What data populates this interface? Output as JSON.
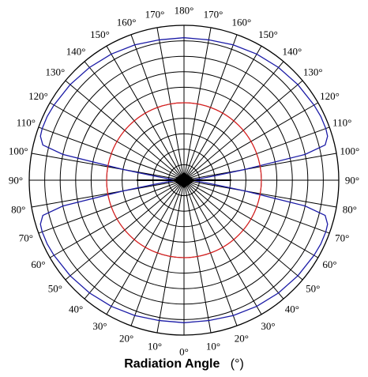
{
  "chart_data": {
    "type": "polar-line",
    "xlabel": "Radiation Angle",
    "xlabel_unit": "(°)",
    "angle_ticks": [
      {
        "angle": 0,
        "left": "0°",
        "right": "0°"
      },
      {
        "angle": 10,
        "left": "10°",
        "right": "10°"
      },
      {
        "angle": 20,
        "left": "20°",
        "right": "20°"
      },
      {
        "angle": 30,
        "left": "30°",
        "right": "30°"
      },
      {
        "angle": 40,
        "left": "40°",
        "right": "40°"
      },
      {
        "angle": 50,
        "left": "50°",
        "right": "50°"
      },
      {
        "angle": 60,
        "left": "60°",
        "right": "60°"
      },
      {
        "angle": 70,
        "left": "70°",
        "right": "70°"
      },
      {
        "angle": 80,
        "left": "80°",
        "right": "80°"
      },
      {
        "angle": 90,
        "left": "90°",
        "right": "90°"
      },
      {
        "angle": 100,
        "left": "100°",
        "right": "100°"
      },
      {
        "angle": 110,
        "left": "110°",
        "right": "110°"
      },
      {
        "angle": 120,
        "left": "120°",
        "right": "120°"
      },
      {
        "angle": 130,
        "left": "130°",
        "right": "130°"
      },
      {
        "angle": 140,
        "left": "140°",
        "right": "140°"
      },
      {
        "angle": 150,
        "left": "150°",
        "right": "150°"
      },
      {
        "angle": 160,
        "left": "160°",
        "right": "160°"
      },
      {
        "angle": 170,
        "left": "170°",
        "right": "170°"
      },
      {
        "angle": 180,
        "left": "180°",
        "right": "180°"
      }
    ],
    "radial_max": 1.0,
    "radial_grid": [
      0.1,
      0.2,
      0.3,
      0.4,
      0.5,
      0.6,
      0.7,
      0.8,
      0.9,
      1.0
    ],
    "angular_grid_step": 10,
    "grid": true,
    "series": [
      {
        "color": "#1a1aa6",
        "points": [
          [
            0,
            0.92
          ],
          [
            10,
            0.92
          ],
          [
            20,
            0.93
          ],
          [
            30,
            0.94
          ],
          [
            40,
            0.95
          ],
          [
            50,
            0.96
          ],
          [
            60,
            0.97
          ],
          [
            65,
            0.975
          ],
          [
            70,
            0.975
          ],
          [
            73,
            0.97
          ],
          [
            76,
            0.94
          ],
          [
            78,
            0.8
          ],
          [
            80,
            0.4
          ],
          [
            82,
            0.2
          ],
          [
            85,
            0.1
          ],
          [
            88,
            0.06
          ],
          [
            90,
            0.05
          ],
          [
            92,
            0.06
          ],
          [
            95,
            0.1
          ],
          [
            98,
            0.2
          ],
          [
            100,
            0.4
          ],
          [
            102,
            0.8
          ],
          [
            104,
            0.94
          ],
          [
            107,
            0.97
          ],
          [
            110,
            0.975
          ],
          [
            115,
            0.975
          ],
          [
            120,
            0.97
          ],
          [
            130,
            0.96
          ],
          [
            140,
            0.95
          ],
          [
            150,
            0.94
          ],
          [
            160,
            0.93
          ],
          [
            170,
            0.92
          ],
          [
            180,
            0.92
          ]
        ]
      },
      {
        "color": "#e02020",
        "points": [
          [
            0,
            0.5
          ],
          [
            30,
            0.5
          ],
          [
            60,
            0.5
          ],
          [
            90,
            0.5
          ],
          [
            120,
            0.5
          ],
          [
            150,
            0.5
          ],
          [
            180,
            0.5
          ]
        ]
      }
    ]
  }
}
